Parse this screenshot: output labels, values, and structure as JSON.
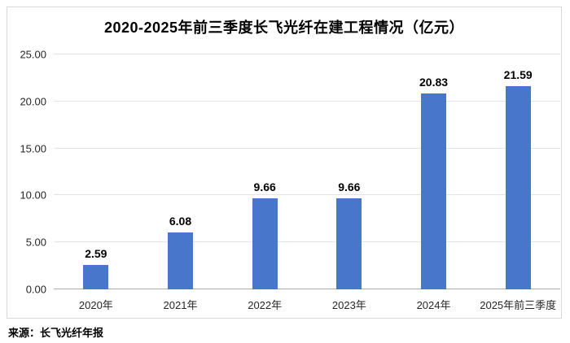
{
  "chart": {
    "title": "2020-2025年前三季度长飞光纤在建工程情况（亿元）",
    "source": "来源：长飞光纤年报"
  },
  "chart_data": {
    "type": "bar",
    "title": "2020-2025年前三季度长飞光纤在建工程情况（亿元）",
    "categories": [
      "2020年",
      "2021年",
      "2022年",
      "2023年",
      "2024年",
      "2025年前三季度"
    ],
    "values": [
      2.59,
      6.08,
      9.66,
      9.66,
      20.83,
      21.59
    ],
    "value_labels": [
      "2.59",
      "6.08",
      "9.66",
      "9.66",
      "20.83",
      "21.59"
    ],
    "xlabel": "",
    "ylabel": "",
    "ylim": [
      0,
      25
    ],
    "ytick_labels": [
      "0.00",
      "5.00",
      "10.00",
      "15.00",
      "20.00",
      "25.00"
    ],
    "ytick_values": [
      0,
      5,
      10,
      15,
      20,
      25
    ],
    "grid": true,
    "legend": false,
    "bar_color": "#4876cb",
    "source": "来源：长飞光纤年报"
  }
}
